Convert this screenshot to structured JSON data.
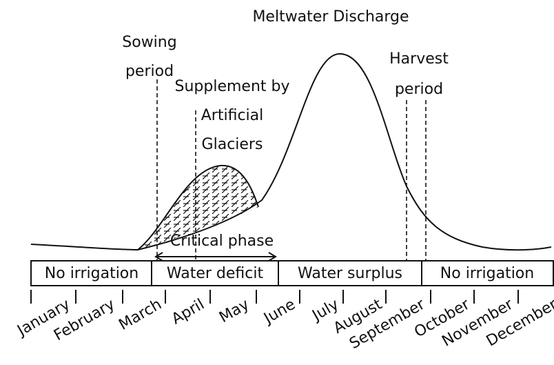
{
  "title": "Meltwater Discharge",
  "sowing_label": [
    "Sowing",
    "period"
  ],
  "supplement_label": [
    "Supplement by",
    "Artificial",
    "Glaciers"
  ],
  "harvest_label": [
    "Harvest",
    "period"
  ],
  "critical_label": "Critical phase",
  "segments": [
    "No irrigation",
    "Water deficit",
    "Water surplus",
    "No irrigation"
  ],
  "months": [
    "January",
    "February",
    "March",
    "April",
    "May",
    "June",
    "July",
    "August",
    "September",
    "October",
    "November",
    "December"
  ]
}
